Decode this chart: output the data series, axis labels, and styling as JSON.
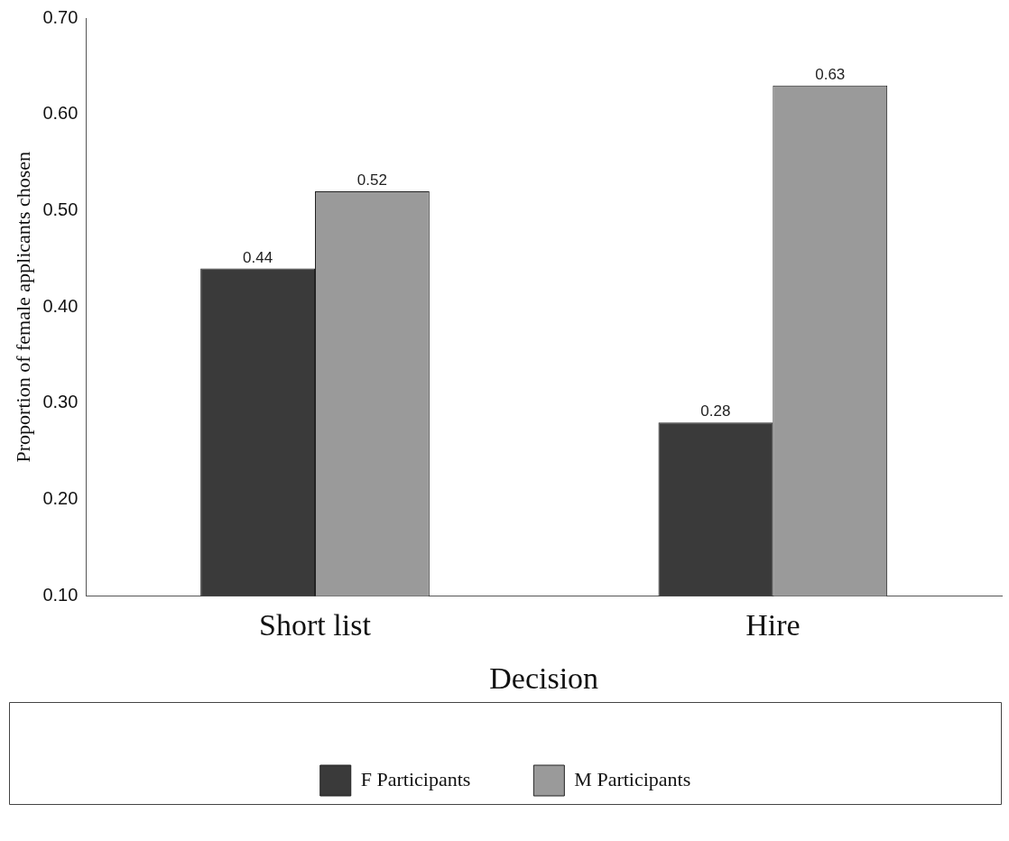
{
  "chart_data": {
    "type": "bar",
    "xlabel": "Decision",
    "ylabel": "Proportion of female applicants chosen",
    "categories": [
      "Short list",
      "Hire"
    ],
    "series": [
      {
        "name": "F Participants",
        "color": "#3a3a3a",
        "values": [
          0.44,
          0.28
        ]
      },
      {
        "name": "M Participants",
        "color": "#9a9a9a",
        "values": [
          0.52,
          0.63
        ]
      }
    ],
    "ylim": [
      0.1,
      0.7
    ],
    "yticks": [
      {
        "value": 0.1,
        "label": "0.10"
      },
      {
        "value": 0.2,
        "label": "0.20"
      },
      {
        "value": 0.3,
        "label": "0.30"
      },
      {
        "value": 0.4,
        "label": "0.40"
      },
      {
        "value": 0.5,
        "label": "0.50"
      },
      {
        "value": 0.6,
        "label": "0.60"
      },
      {
        "value": 0.7,
        "label": "0.70"
      }
    ],
    "grid": false,
    "legend": "bottom",
    "data_labels": true
  }
}
